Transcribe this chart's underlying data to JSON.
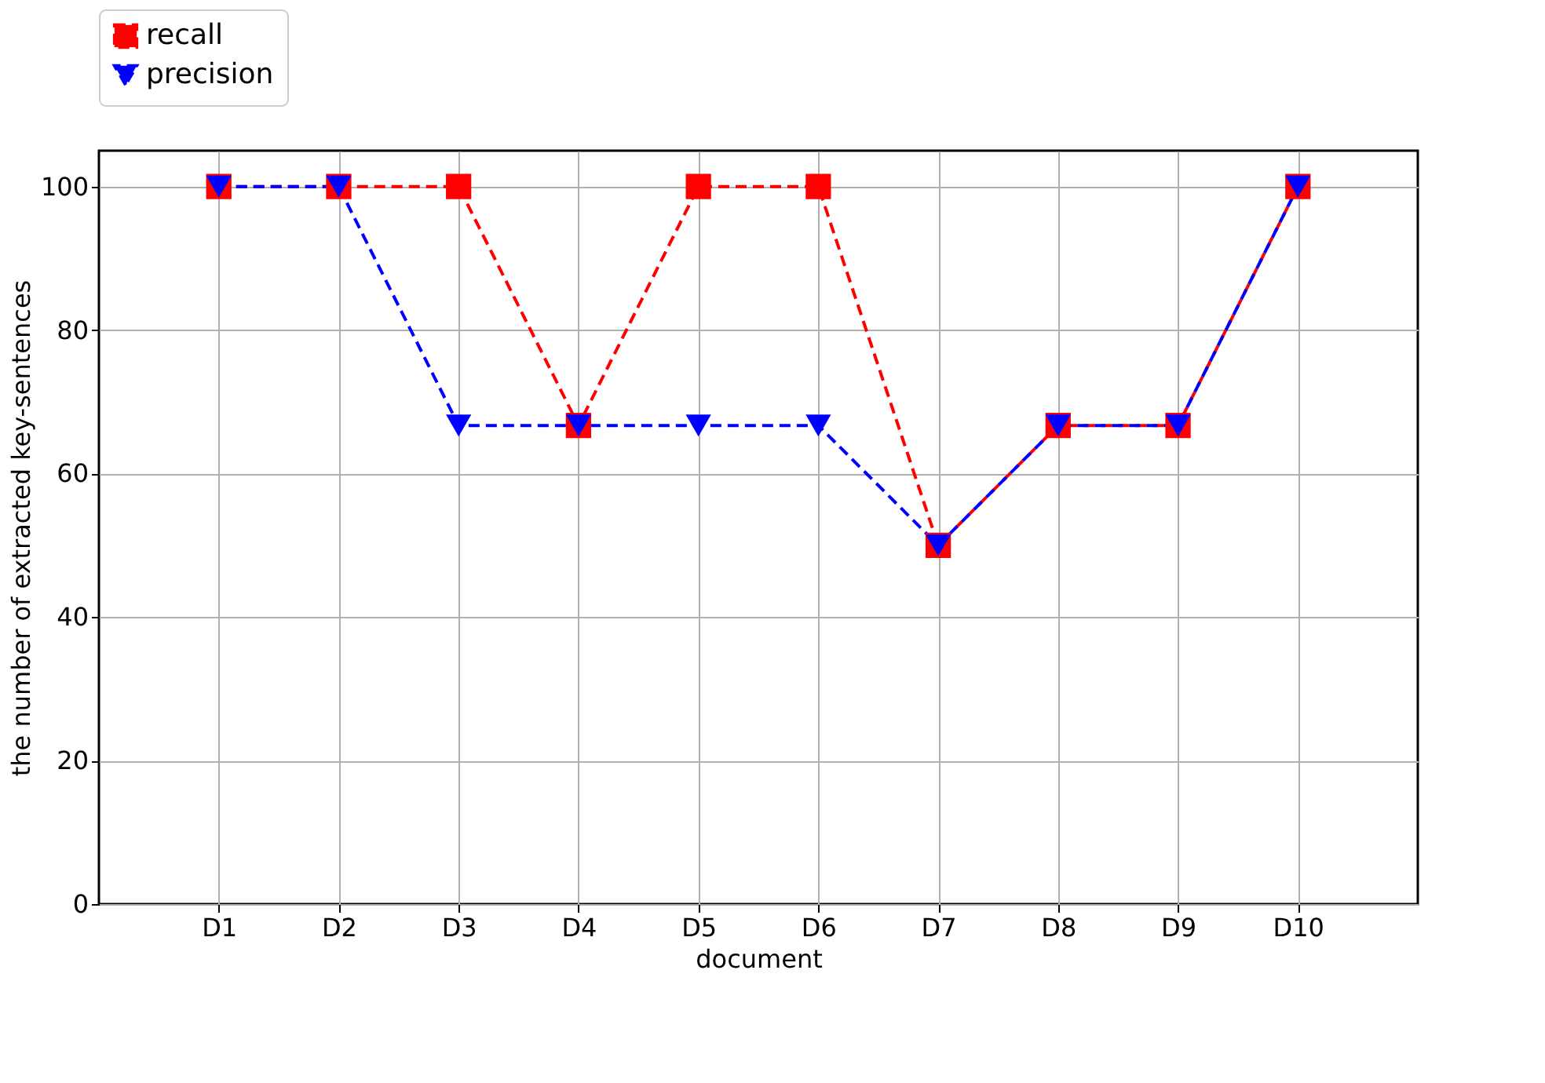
{
  "chart_data": {
    "type": "line",
    "xlabel": "document",
    "ylabel": "the number of extracted key-sentences",
    "categories": [
      "D1",
      "D2",
      "D3",
      "D4",
      "D5",
      "D6",
      "D7",
      "D8",
      "D9",
      "D10"
    ],
    "series": [
      {
        "name": "recall",
        "color": "#ff0000",
        "marker": "square",
        "values": [
          100,
          100,
          100,
          66.7,
          100,
          100,
          50,
          66.7,
          66.7,
          100
        ]
      },
      {
        "name": "precision",
        "color": "#0000ff",
        "marker": "triangle-down",
        "values": [
          100,
          100,
          66.7,
          66.7,
          66.7,
          66.7,
          50,
          66.7,
          66.7,
          100
        ]
      }
    ],
    "ylim": [
      0,
      105
    ],
    "yticks": [
      0,
      20,
      40,
      60,
      80,
      100
    ],
    "grid": true,
    "legend": "top left",
    "line_style": "dashed"
  }
}
